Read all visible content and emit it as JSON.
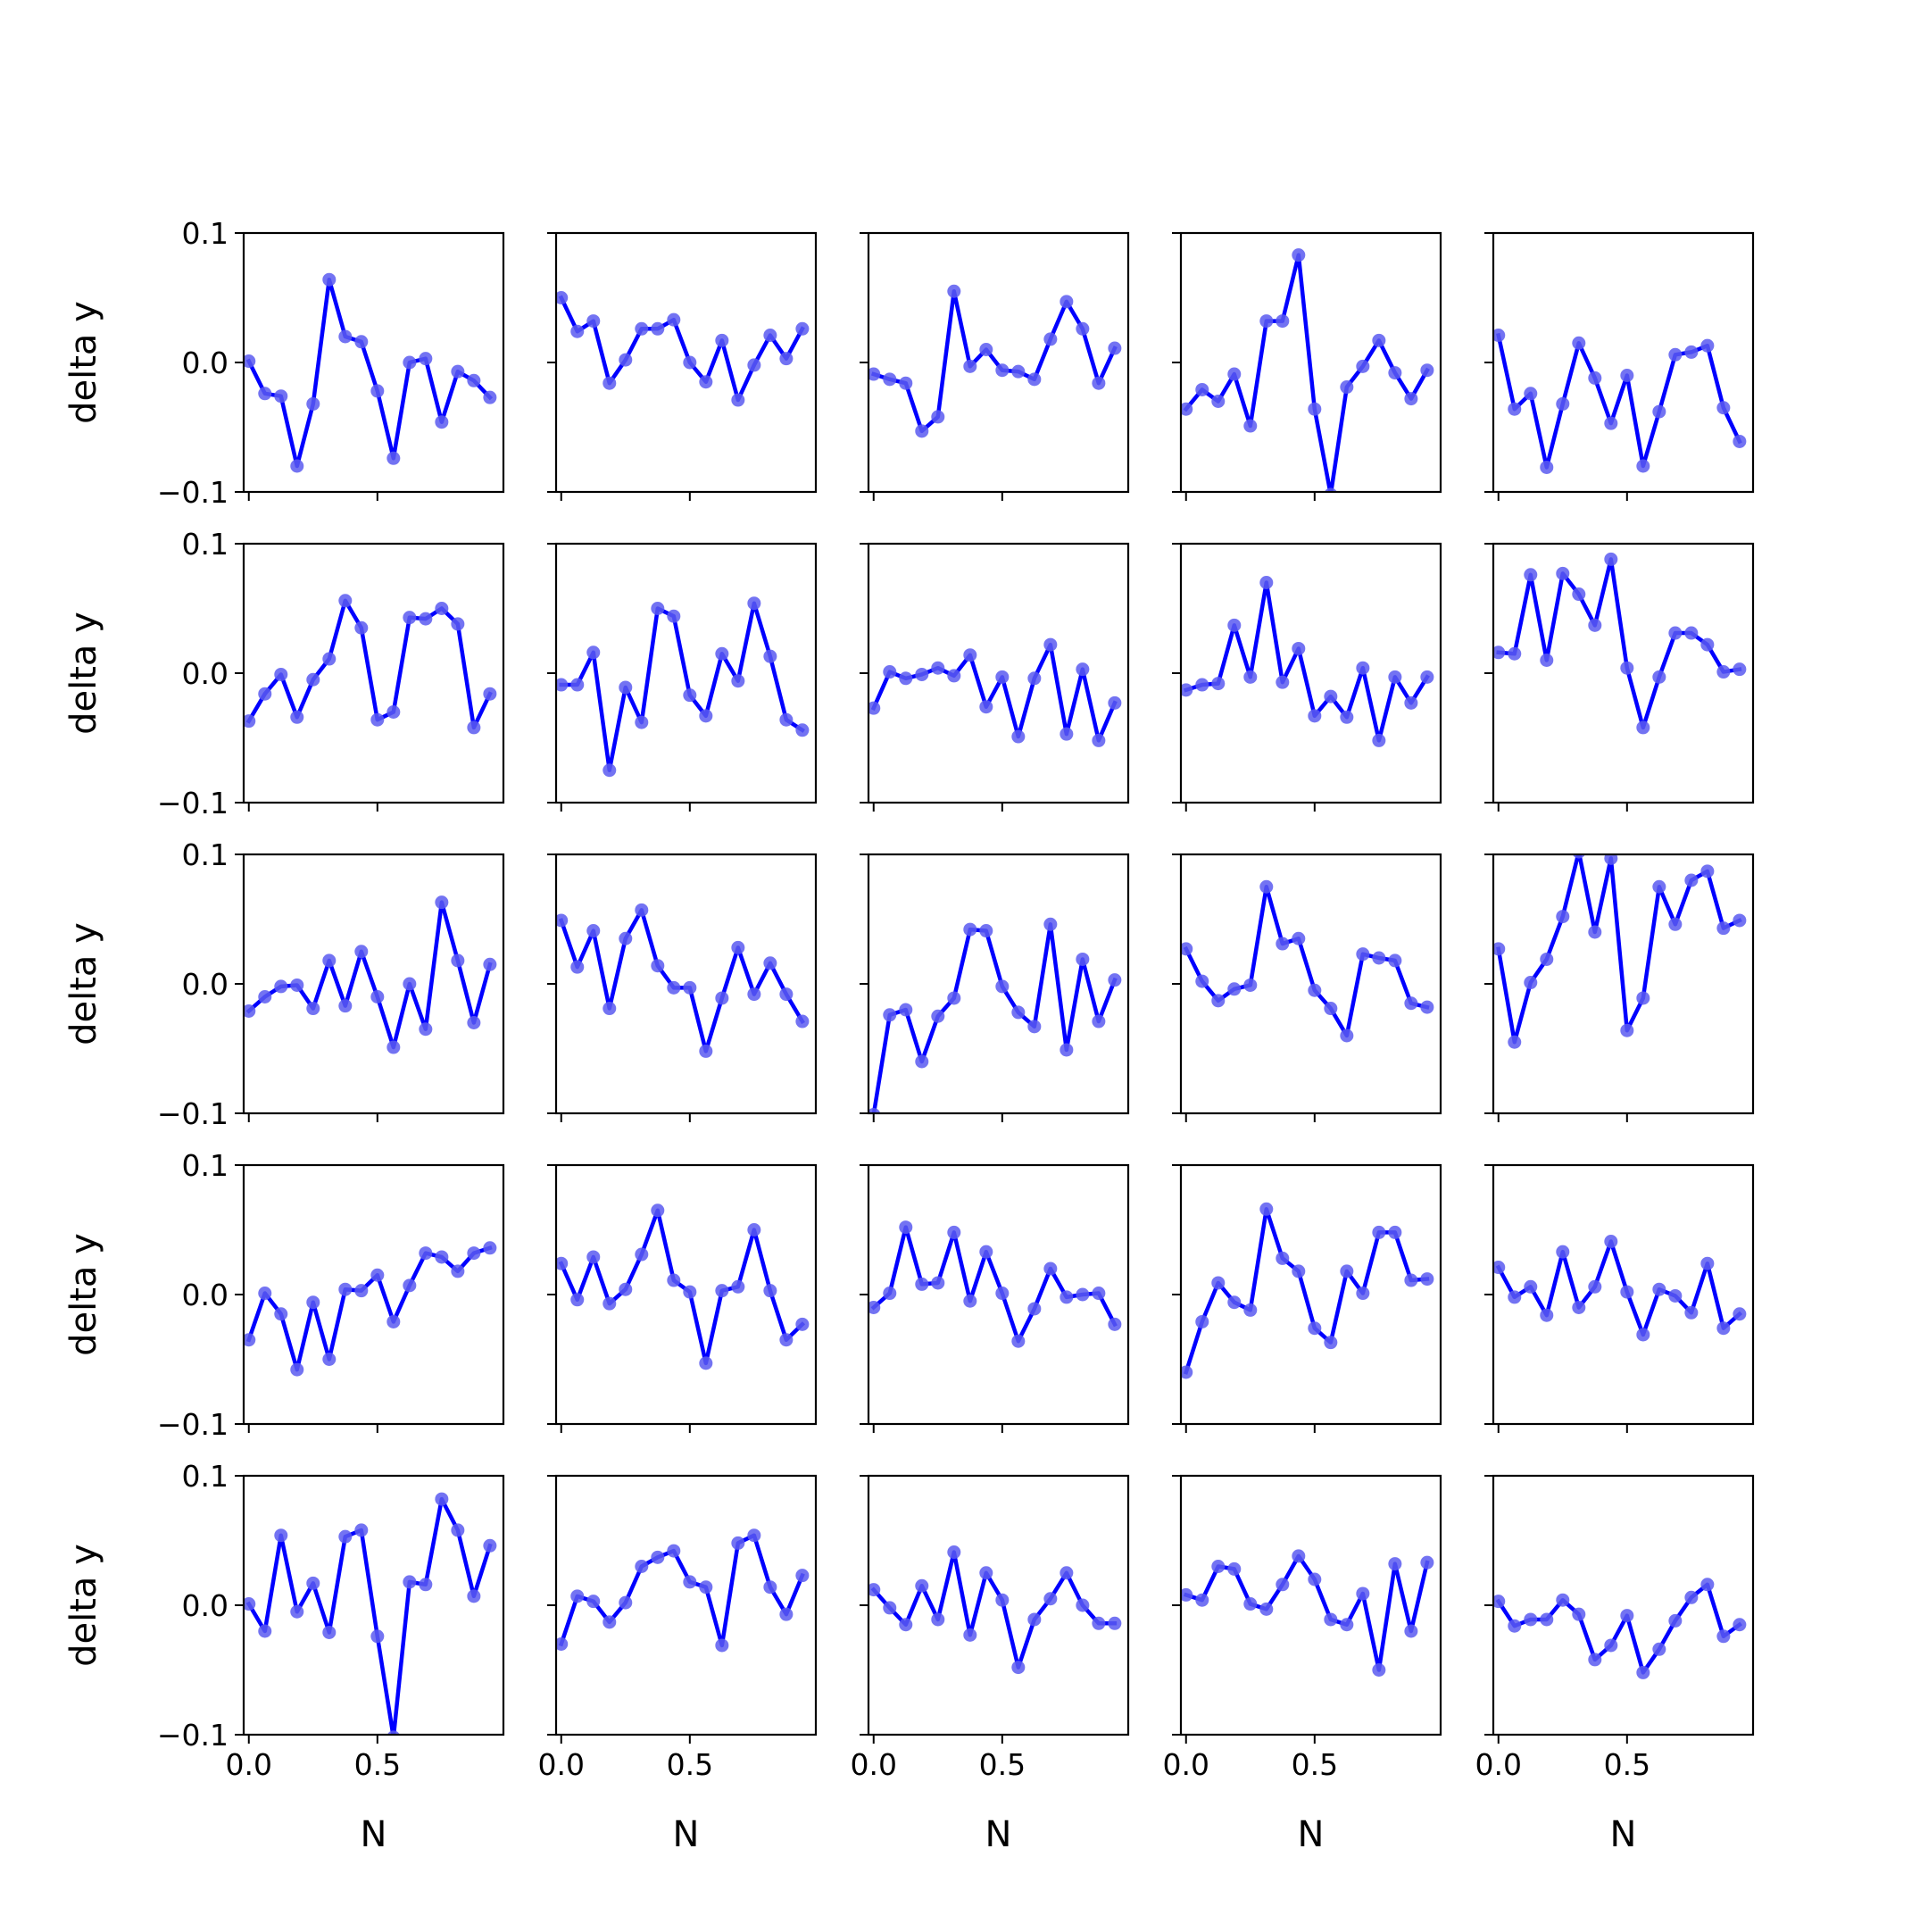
{
  "colors": {
    "line": "#0000ff",
    "marker": "#5a5af0",
    "axis": "#000000",
    "background": "#ffffff"
  },
  "chart_data": {
    "type": "line",
    "layout": "5x5 small multiples",
    "xlabel": "N",
    "ylabel": "delta y",
    "xlim": [
      -0.02,
      0.99
    ],
    "ylim": [
      -0.1,
      0.1
    ],
    "xticks": [
      0.0,
      0.5
    ],
    "xtick_labels": [
      "0.0",
      "0.5"
    ],
    "yticks": [
      -0.1,
      0.0,
      0.1
    ],
    "ytick_labels": [
      "−0.1",
      "0.0",
      "0.1"
    ],
    "grid": false,
    "legend": "none",
    "x": [
      0.0,
      0.0625,
      0.125,
      0.1875,
      0.25,
      0.3125,
      0.375,
      0.4375,
      0.5,
      0.5625,
      0.625,
      0.6875,
      0.75,
      0.8125,
      0.875,
      0.9375
    ],
    "panels": [
      {
        "values": [
          0.001,
          -0.024,
          -0.026,
          -0.08,
          -0.032,
          0.064,
          0.02,
          0.016,
          -0.022,
          -0.074,
          0.0,
          0.003,
          -0.046,
          -0.007,
          -0.014,
          -0.027
        ]
      },
      {
        "values": [
          0.05,
          0.024,
          0.032,
          -0.016,
          0.002,
          0.026,
          0.026,
          0.033,
          0.0,
          -0.015,
          0.017,
          -0.029,
          -0.002,
          0.021,
          0.003,
          0.026
        ]
      },
      {
        "values": [
          -0.009,
          -0.013,
          -0.016,
          -0.053,
          -0.042,
          0.055,
          -0.003,
          0.01,
          -0.006,
          -0.007,
          -0.013,
          0.018,
          0.047,
          0.026,
          -0.016,
          0.011
        ]
      },
      {
        "values": [
          -0.036,
          -0.021,
          -0.03,
          -0.009,
          -0.049,
          0.032,
          0.032,
          0.083,
          -0.036,
          -0.102,
          -0.019,
          -0.003,
          0.017,
          -0.008,
          -0.028,
          -0.006
        ]
      },
      {
        "values": [
          0.021,
          -0.036,
          -0.024,
          -0.081,
          -0.032,
          0.015,
          -0.012,
          -0.047,
          -0.01,
          -0.08,
          -0.038,
          0.006,
          0.008,
          0.013,
          -0.035,
          -0.061
        ]
      },
      {
        "values": [
          -0.037,
          -0.016,
          -0.001,
          -0.034,
          -0.005,
          0.011,
          0.056,
          0.035,
          -0.036,
          -0.03,
          0.043,
          0.042,
          0.05,
          0.038,
          -0.042,
          -0.016
        ]
      },
      {
        "values": [
          -0.009,
          -0.009,
          0.016,
          -0.075,
          -0.011,
          -0.038,
          0.05,
          0.044,
          -0.017,
          -0.033,
          0.015,
          -0.006,
          0.054,
          0.013,
          -0.036,
          -0.044
        ]
      },
      {
        "values": [
          -0.027,
          0.001,
          -0.004,
          -0.001,
          0.004,
          -0.002,
          0.014,
          -0.026,
          -0.003,
          -0.049,
          -0.004,
          0.022,
          -0.047,
          0.003,
          -0.052,
          -0.023
        ]
      },
      {
        "values": [
          -0.013,
          -0.009,
          -0.008,
          0.037,
          -0.003,
          0.07,
          -0.007,
          0.019,
          -0.033,
          -0.018,
          -0.034,
          0.004,
          -0.052,
          -0.003,
          -0.023,
          -0.003
        ]
      },
      {
        "values": [
          0.016,
          0.015,
          0.076,
          0.01,
          0.077,
          0.061,
          0.037,
          0.088,
          0.004,
          -0.042,
          -0.003,
          0.031,
          0.031,
          0.022,
          0.001,
          0.003
        ]
      },
      {
        "values": [
          -0.021,
          -0.01,
          -0.002,
          -0.001,
          -0.019,
          0.018,
          -0.017,
          0.025,
          -0.01,
          -0.049,
          0.0,
          -0.035,
          0.063,
          0.018,
          -0.03,
          0.015
        ]
      },
      {
        "values": [
          0.049,
          0.013,
          0.041,
          -0.019,
          0.035,
          0.057,
          0.014,
          -0.003,
          -0.003,
          -0.052,
          -0.011,
          0.028,
          -0.008,
          0.016,
          -0.008,
          -0.029
        ]
      },
      {
        "values": [
          -0.101,
          -0.024,
          -0.02,
          -0.06,
          -0.025,
          -0.011,
          0.042,
          0.041,
          -0.002,
          -0.022,
          -0.033,
          0.046,
          -0.051,
          0.019,
          -0.029,
          0.003
        ]
      },
      {
        "values": [
          0.027,
          0.002,
          -0.013,
          -0.004,
          -0.001,
          0.075,
          0.031,
          0.035,
          -0.005,
          -0.019,
          -0.04,
          0.023,
          0.02,
          0.018,
          -0.015,
          -0.018
        ]
      },
      {
        "values": [
          0.027,
          -0.045,
          0.001,
          0.019,
          0.052,
          0.102,
          0.04,
          0.097,
          -0.036,
          -0.011,
          0.075,
          0.046,
          0.08,
          0.087,
          0.043,
          0.049
        ]
      },
      {
        "values": [
          -0.035,
          0.001,
          -0.015,
          -0.058,
          -0.006,
          -0.05,
          0.004,
          0.003,
          0.015,
          -0.021,
          0.007,
          0.032,
          0.029,
          0.018,
          0.032,
          0.036
        ]
      },
      {
        "values": [
          0.024,
          -0.004,
          0.029,
          -0.007,
          0.004,
          0.031,
          0.065,
          0.011,
          0.002,
          -0.053,
          0.003,
          0.006,
          0.05,
          0.003,
          -0.035,
          -0.023
        ]
      },
      {
        "values": [
          -0.01,
          0.001,
          0.052,
          0.008,
          0.009,
          0.048,
          -0.005,
          0.033,
          0.001,
          -0.036,
          -0.011,
          0.02,
          -0.002,
          0.0,
          0.001,
          -0.023
        ]
      },
      {
        "values": [
          -0.06,
          -0.021,
          0.009,
          -0.006,
          -0.012,
          0.066,
          0.028,
          0.018,
          -0.026,
          -0.037,
          0.018,
          0.001,
          0.048,
          0.048,
          0.011,
          0.012
        ]
      },
      {
        "values": [
          0.021,
          -0.002,
          0.006,
          -0.016,
          0.033,
          -0.01,
          0.006,
          0.041,
          0.002,
          -0.031,
          0.004,
          -0.001,
          -0.014,
          0.024,
          -0.026,
          -0.015
        ]
      },
      {
        "values": [
          0.001,
          -0.02,
          0.054,
          -0.005,
          0.017,
          -0.021,
          0.053,
          0.058,
          -0.024,
          -0.102,
          0.018,
          0.016,
          0.082,
          0.058,
          0.007,
          0.046
        ]
      },
      {
        "values": [
          -0.03,
          0.007,
          0.003,
          -0.013,
          0.002,
          0.03,
          0.037,
          0.042,
          0.018,
          0.014,
          -0.031,
          0.048,
          0.054,
          0.014,
          -0.007,
          0.023
        ]
      },
      {
        "values": [
          0.012,
          -0.002,
          -0.015,
          0.015,
          -0.011,
          0.041,
          -0.023,
          0.025,
          0.004,
          -0.048,
          -0.011,
          0.005,
          0.025,
          0.0,
          -0.014,
          -0.014
        ]
      },
      {
        "values": [
          0.008,
          0.004,
          0.03,
          0.028,
          0.001,
          -0.003,
          0.016,
          0.038,
          0.02,
          -0.011,
          -0.015,
          0.009,
          -0.05,
          0.032,
          -0.02,
          0.033
        ]
      },
      {
        "values": [
          0.003,
          -0.016,
          -0.011,
          -0.011,
          0.004,
          -0.007,
          -0.042,
          -0.031,
          -0.008,
          -0.052,
          -0.034,
          -0.012,
          0.006,
          0.016,
          -0.024,
          -0.015
        ]
      }
    ]
  }
}
